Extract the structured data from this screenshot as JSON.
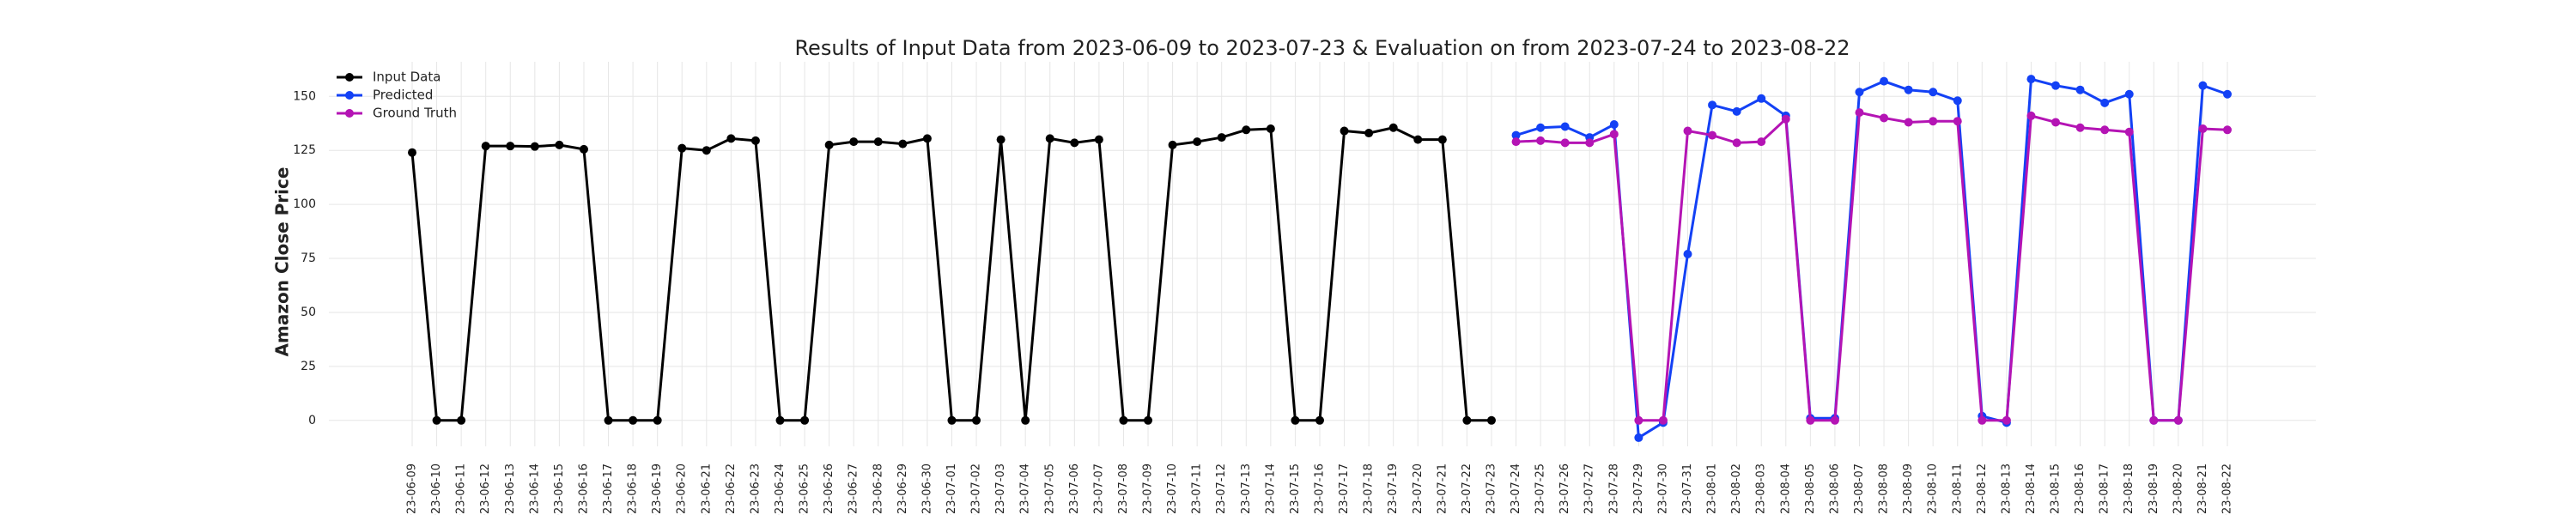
{
  "chart_data": {
    "type": "line",
    "title": "Results of Input Data from 2023-06-09 to 2023-07-23 & Evaluation on from 2023-07-24 to 2023-08-22",
    "y_label": "Amazon Close Price",
    "x": [
      "2023-06-09",
      "2023-06-10",
      "2023-06-11",
      "2023-06-12",
      "2023-06-13",
      "2023-06-14",
      "2023-06-15",
      "2023-06-16",
      "2023-06-17",
      "2023-06-18",
      "2023-06-19",
      "2023-06-20",
      "2023-06-21",
      "2023-06-22",
      "2023-06-23",
      "2023-06-24",
      "2023-06-25",
      "2023-06-26",
      "2023-06-27",
      "2023-06-28",
      "2023-06-29",
      "2023-06-30",
      "2023-07-01",
      "2023-07-02",
      "2023-07-03",
      "2023-07-04",
      "2023-07-05",
      "2023-07-06",
      "2023-07-07",
      "2023-07-08",
      "2023-07-09",
      "2023-07-10",
      "2023-07-11",
      "2023-07-12",
      "2023-07-13",
      "2023-07-14",
      "2023-07-15",
      "2023-07-16",
      "2023-07-17",
      "2023-07-18",
      "2023-07-19",
      "2023-07-20",
      "2023-07-21",
      "2023-07-22",
      "2023-07-23",
      "2023-07-24",
      "2023-07-25",
      "2023-07-26",
      "2023-07-27",
      "2023-07-28",
      "2023-07-29",
      "2023-07-30",
      "2023-07-31",
      "2023-08-01",
      "2023-08-02",
      "2023-08-03",
      "2023-08-04",
      "2023-08-05",
      "2023-08-06",
      "2023-08-07",
      "2023-08-08",
      "2023-08-09",
      "2023-08-10",
      "2023-08-11",
      "2023-08-12",
      "2023-08-13",
      "2023-08-14",
      "2023-08-15",
      "2023-08-16",
      "2023-08-17",
      "2023-08-18",
      "2023-08-19",
      "2023-08-20",
      "2023-08-21",
      "2023-08-22"
    ],
    "series": [
      {
        "name": "Input Data",
        "color": "#000000",
        "values": [
          124,
          0,
          0,
          127,
          127,
          126.8,
          127.5,
          125.5,
          0,
          0,
          0,
          126,
          125,
          130.5,
          129.5,
          0,
          0,
          127.5,
          129,
          129,
          128,
          130.5,
          0,
          0,
          130,
          0,
          130.5,
          128.5,
          130,
          0,
          0,
          127.5,
          129,
          131,
          134.5,
          135,
          0,
          0,
          134,
          133,
          135.5,
          130,
          130,
          0,
          0,
          null,
          null,
          null,
          null,
          null,
          null,
          null,
          null,
          null,
          null,
          null,
          null,
          null,
          null,
          null,
          null,
          null,
          null,
          null,
          null,
          null,
          null,
          null,
          null,
          null,
          null,
          null,
          null,
          null,
          null
        ]
      },
      {
        "name": "Predicted",
        "color": "#1341f5",
        "values": [
          null,
          null,
          null,
          null,
          null,
          null,
          null,
          null,
          null,
          null,
          null,
          null,
          null,
          null,
          null,
          null,
          null,
          null,
          null,
          null,
          null,
          null,
          null,
          null,
          null,
          null,
          null,
          null,
          null,
          null,
          null,
          null,
          null,
          null,
          null,
          null,
          null,
          null,
          null,
          null,
          null,
          null,
          null,
          null,
          null,
          132,
          135.5,
          136,
          131,
          137,
          -8,
          -1,
          77,
          146,
          143,
          149,
          141,
          1,
          1,
          152,
          157,
          153,
          152,
          148,
          2,
          -1,
          158,
          155,
          153,
          147,
          151,
          0,
          0,
          155,
          151
        ]
      },
      {
        "name": "Ground Truth",
        "color": "#b414b4",
        "values": [
          null,
          null,
          null,
          null,
          null,
          null,
          null,
          null,
          null,
          null,
          null,
          null,
          null,
          null,
          null,
          null,
          null,
          null,
          null,
          null,
          null,
          null,
          null,
          null,
          null,
          null,
          null,
          null,
          null,
          null,
          null,
          null,
          null,
          null,
          null,
          null,
          null,
          null,
          null,
          null,
          null,
          null,
          null,
          null,
          null,
          129,
          129.5,
          128.5,
          128.5,
          132.5,
          0,
          0,
          134,
          132,
          128.5,
          129,
          139.5,
          0,
          0,
          142.5,
          140,
          138,
          138.5,
          138.5,
          0,
          0,
          141,
          138,
          135.5,
          134.5,
          133.5,
          0,
          0,
          135,
          134.5
        ]
      }
    ],
    "ylim": [
      -12,
      166
    ],
    "yticks": [
      0,
      25,
      50,
      75,
      100,
      125,
      150
    ],
    "grid": true,
    "legend": "upper left"
  }
}
